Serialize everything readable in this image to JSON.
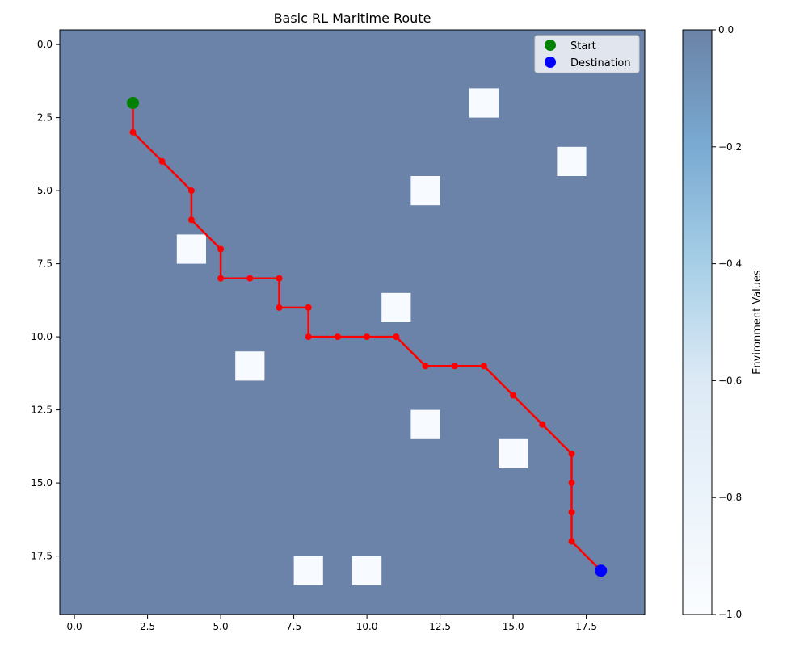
{
  "chart_data": {
    "type": "heatmap",
    "title": "Basic RL Maritime Route",
    "xlabel": "",
    "ylabel": "",
    "grid": false,
    "grid_size": [
      20,
      20
    ],
    "xlim": [
      -0.5,
      19.5
    ],
    "ylim": [
      19.5,
      -0.5
    ],
    "x_ticks": [
      0.0,
      2.5,
      5.0,
      7.5,
      10.0,
      12.5,
      15.0,
      17.5
    ],
    "x_tick_labels": [
      "0.0",
      "2.5",
      "5.0",
      "7.5",
      "10.0",
      "12.5",
      "15.0",
      "17.5"
    ],
    "y_ticks": [
      0.0,
      2.5,
      5.0,
      7.5,
      10.0,
      12.5,
      15.0,
      17.5
    ],
    "y_tick_labels": [
      "0.0",
      "2.5",
      "5.0",
      "7.5",
      "10.0",
      "12.5",
      "15.0",
      "17.5"
    ],
    "background_value": 0.0,
    "obstacle_value": -1.0,
    "obstacles": [
      {
        "x": 14,
        "y": 2
      },
      {
        "x": 17,
        "y": 4
      },
      {
        "x": 12,
        "y": 5
      },
      {
        "x": 4,
        "y": 7
      },
      {
        "x": 11,
        "y": 9
      },
      {
        "x": 6,
        "y": 11
      },
      {
        "x": 12,
        "y": 13
      },
      {
        "x": 15,
        "y": 14
      },
      {
        "x": 8,
        "y": 18
      },
      {
        "x": 10,
        "y": 18
      }
    ],
    "route_color": "#ff0000",
    "route": [
      [
        2,
        2
      ],
      [
        2,
        3
      ],
      [
        3,
        4
      ],
      [
        4,
        5
      ],
      [
        4,
        6
      ],
      [
        5,
        7
      ],
      [
        5,
        8
      ],
      [
        6,
        8
      ],
      [
        7,
        8
      ],
      [
        7,
        9
      ],
      [
        8,
        9
      ],
      [
        8,
        10
      ],
      [
        9,
        10
      ],
      [
        10,
        10
      ],
      [
        11,
        10
      ],
      [
        12,
        11
      ],
      [
        13,
        11
      ],
      [
        14,
        11
      ],
      [
        15,
        12
      ],
      [
        16,
        13
      ],
      [
        17,
        14
      ],
      [
        17,
        15
      ],
      [
        17,
        16
      ],
      [
        17,
        17
      ],
      [
        18,
        18
      ]
    ],
    "markers": [
      {
        "name": "Start",
        "x": 2,
        "y": 2,
        "color": "#008000"
      },
      {
        "name": "Destination",
        "x": 18,
        "y": 18,
        "color": "#0000ff"
      }
    ],
    "legend": {
      "placement": "top-right",
      "entries": [
        "Start",
        "Destination"
      ]
    },
    "colorbar": {
      "label": "Environment Values",
      "range": [
        -1.0,
        0.0
      ],
      "ticks": [
        0.0,
        -0.2,
        -0.4,
        -0.6,
        -0.8,
        -1.0
      ],
      "tick_labels": [
        "0.0",
        "−0.2",
        "−0.4",
        "−0.6",
        "−0.8",
        "−1.0"
      ],
      "colormap": "Blues_r"
    }
  }
}
